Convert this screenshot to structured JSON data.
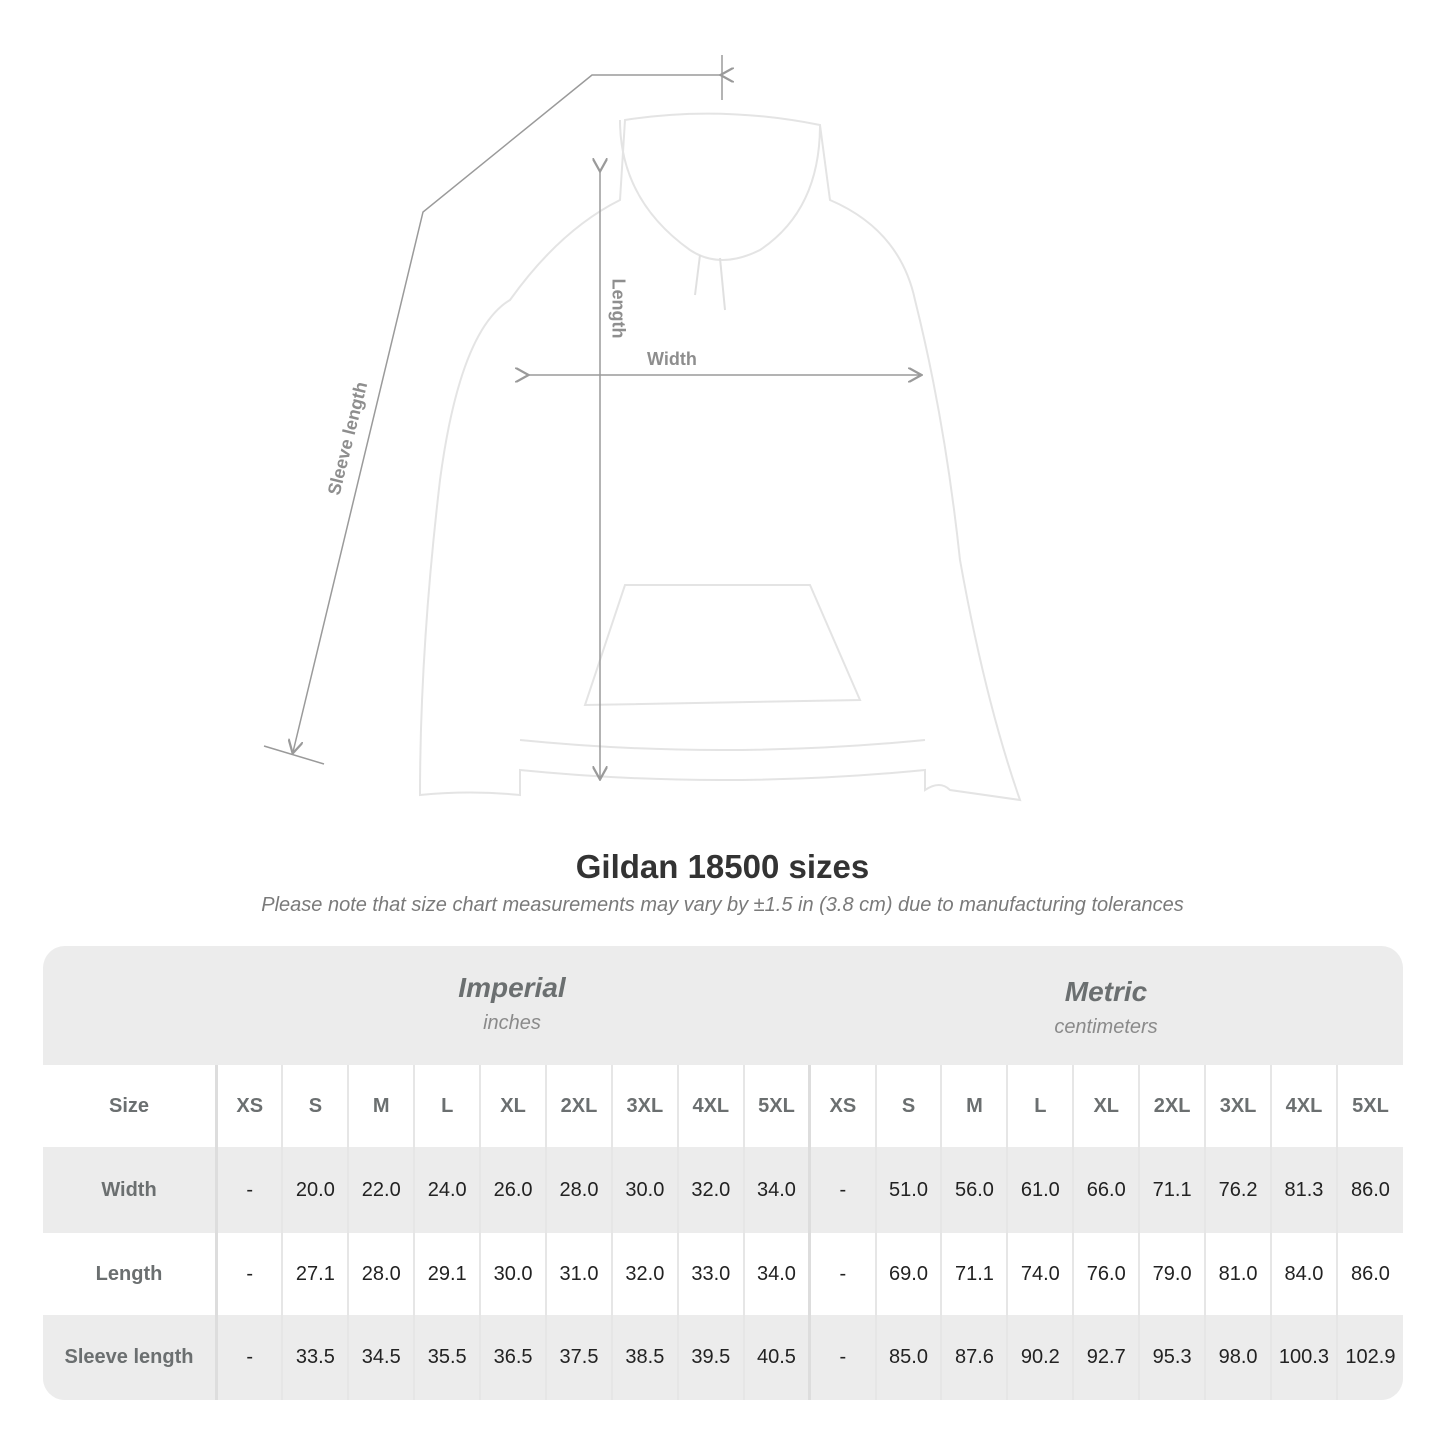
{
  "diagram": {
    "labels": {
      "sleeve": "Sleeve length",
      "length": "Length",
      "width": "Width"
    },
    "garment_color": "#ffffff",
    "line_color": "#9a9a9a"
  },
  "header": {
    "title": "Gildan 18500 sizes",
    "subtitle": "Please note that size chart measurements may vary by ±1.5 in (3.8 cm) due to manufacturing tolerances"
  },
  "table": {
    "imperial": {
      "name": "Imperial",
      "unit": "inches"
    },
    "metric": {
      "name": "Metric",
      "unit": "centimeters"
    },
    "size_label": "Size",
    "sizes": [
      "XS",
      "S",
      "M",
      "L",
      "XL",
      "2XL",
      "3XL",
      "4XL",
      "5XL"
    ],
    "rows": [
      {
        "label": "Width",
        "imperial": [
          "-",
          "20.0",
          "22.0",
          "24.0",
          "26.0",
          "28.0",
          "30.0",
          "32.0",
          "34.0"
        ],
        "metric": [
          "-",
          "51.0",
          "56.0",
          "61.0",
          "66.0",
          "71.1",
          "76.2",
          "81.3",
          "86.0"
        ]
      },
      {
        "label": "Length",
        "imperial": [
          "-",
          "27.1",
          "28.0",
          "29.1",
          "30.0",
          "31.0",
          "32.0",
          "33.0",
          "34.0"
        ],
        "metric": [
          "-",
          "69.0",
          "71.1",
          "74.0",
          "76.0",
          "79.0",
          "81.0",
          "84.0",
          "86.0"
        ]
      },
      {
        "label": "Sleeve length",
        "imperial": [
          "-",
          "33.5",
          "34.5",
          "35.5",
          "36.5",
          "37.5",
          "38.5",
          "39.5",
          "40.5"
        ],
        "metric": [
          "-",
          "85.0",
          "87.6",
          "90.2",
          "92.7",
          "95.3",
          "98.0",
          "100.3",
          "102.9"
        ]
      }
    ]
  }
}
